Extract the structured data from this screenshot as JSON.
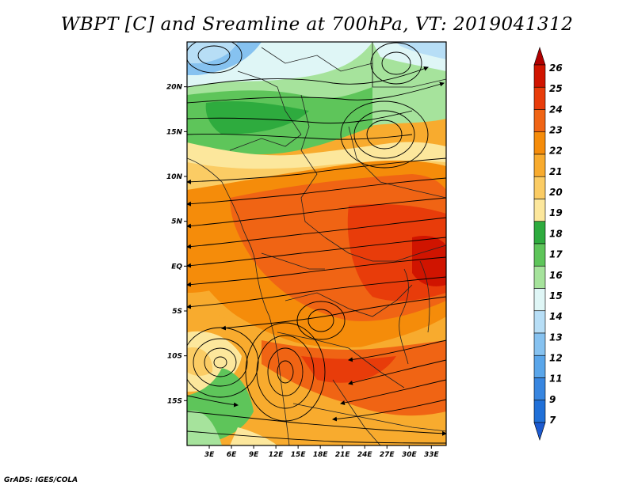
{
  "title": "WBPT [C] and Sreamline at 700hPa, VT: 2019041312",
  "footer": "GrADS: IGES/COLA",
  "map": {
    "lon_range": [
      0,
      35
    ],
    "lat_range": [
      -20,
      25
    ],
    "x_ticks": [
      {
        "value": 3,
        "label": "3E"
      },
      {
        "value": 6,
        "label": "6E"
      },
      {
        "value": 9,
        "label": "9E"
      },
      {
        "value": 12,
        "label": "12E"
      },
      {
        "value": 15,
        "label": "15E"
      },
      {
        "value": 18,
        "label": "18E"
      },
      {
        "value": 21,
        "label": "21E"
      },
      {
        "value": 24,
        "label": "24E"
      },
      {
        "value": 27,
        "label": "27E"
      },
      {
        "value": 30,
        "label": "30E"
      },
      {
        "value": 33,
        "label": "33E"
      }
    ],
    "y_ticks": [
      {
        "value": 20,
        "label": "20N"
      },
      {
        "value": 15,
        "label": "15N"
      },
      {
        "value": 10,
        "label": "10N"
      },
      {
        "value": 5,
        "label": "5N"
      },
      {
        "value": 0,
        "label": "EQ"
      },
      {
        "value": -5,
        "label": "5S"
      },
      {
        "value": -10,
        "label": "10S"
      },
      {
        "value": -15,
        "label": "15S"
      }
    ]
  },
  "colorbar": {
    "levels": [
      {
        "label": "26",
        "color": "#b00000"
      },
      {
        "label": "25",
        "color": "#d01400"
      },
      {
        "label": "24",
        "color": "#e83c0a"
      },
      {
        "label": "23",
        "color": "#f06414"
      },
      {
        "label": "22",
        "color": "#f58c0a"
      },
      {
        "label": "21",
        "color": "#f8ab2e"
      },
      {
        "label": "20",
        "color": "#fbcc64"
      },
      {
        "label": "19",
        "color": "#fce79c"
      },
      {
        "label": "18",
        "color": "#2eab3e"
      },
      {
        "label": "17",
        "color": "#5ec55a"
      },
      {
        "label": "16",
        "color": "#a6e39c"
      },
      {
        "label": "15",
        "color": "#dff6f6"
      },
      {
        "label": "14",
        "color": "#b7def6"
      },
      {
        "label": "13",
        "color": "#86c2f0"
      },
      {
        "label": "12",
        "color": "#5aa6ea"
      },
      {
        "label": "11",
        "color": "#3886e0"
      },
      {
        "label": "9",
        "color": "#2070d8"
      },
      {
        "label": "7",
        "color": "#1c5ad0"
      }
    ]
  }
}
